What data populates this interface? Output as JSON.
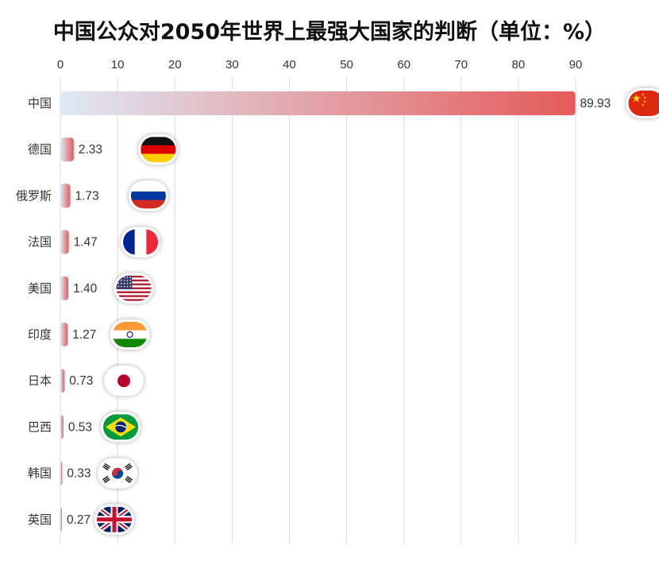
{
  "chart_data": {
    "type": "bar",
    "orientation": "horizontal",
    "title": "中国公众对2050年世界上最强大国家的判断（单位：%）",
    "categories": [
      "中国",
      "德国",
      "俄罗斯",
      "法国",
      "美国",
      "印度",
      "日本",
      "巴西",
      "韩国",
      "英国"
    ],
    "values": [
      89.93,
      2.33,
      1.73,
      1.47,
      1.4,
      1.27,
      0.73,
      0.53,
      0.33,
      0.27
    ],
    "value_labels": [
      "89.93",
      "2.33",
      "1.73",
      "1.47",
      "1.40",
      "1.27",
      "0.73",
      "0.53",
      "0.33",
      "0.27"
    ],
    "flag_icons": [
      "china-flag-icon",
      "germany-flag-icon",
      "russia-flag-icon",
      "france-flag-icon",
      "usa-flag-icon",
      "india-flag-icon",
      "japan-flag-icon",
      "brazil-flag-icon",
      "south-korea-flag-icon",
      "uk-flag-icon"
    ],
    "xticks": [
      0,
      10,
      20,
      30,
      40,
      50,
      60,
      70,
      80,
      90
    ],
    "xlim": [
      0,
      90
    ],
    "xaxis_position": "top",
    "grid": true,
    "bar_gradient": [
      "#dfe9f5",
      "#e55a5a"
    ],
    "xlabel": "",
    "ylabel": ""
  }
}
